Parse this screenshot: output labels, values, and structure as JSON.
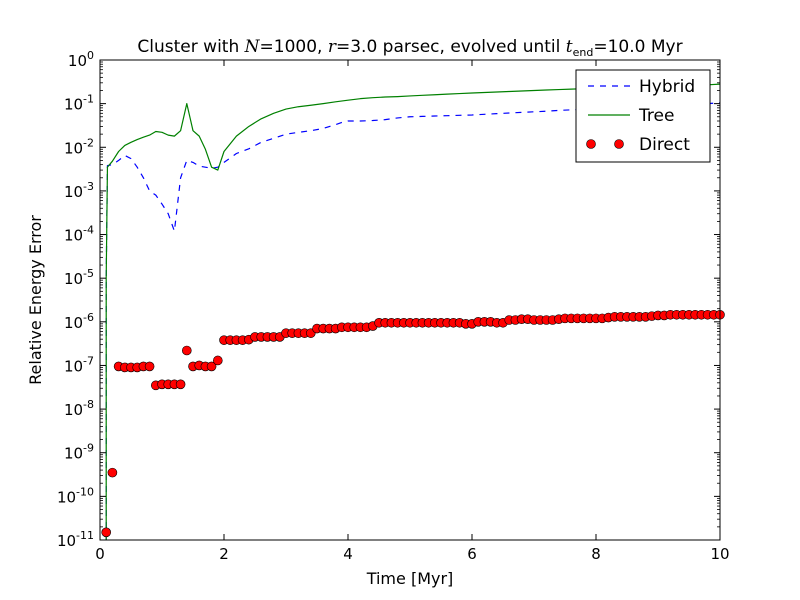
{
  "chart_data": {
    "type": "line",
    "title": "Cluster with N=1000, r=3.0 parsec, evolved until t_end=10.0 Myr",
    "title_parts": {
      "prefix": "Cluster with ",
      "n_symbol": "N",
      "n_value": "=1000, ",
      "r_symbol": "r",
      "r_value": "=3.0 parsec, evolved until ",
      "t_symbol": "t",
      "t_subscript": "end",
      "t_value": "=10.0 Myr"
    },
    "xlabel": "Time [Myr]",
    "ylabel": "Relative Energy Error",
    "xlim": [
      0,
      10
    ],
    "ylim": [
      1e-11,
      1
    ],
    "yscale": "log",
    "x_ticks": [
      0,
      2,
      4,
      6,
      8,
      10
    ],
    "y_ticks": [
      {
        "base": "10",
        "exp": "0",
        "value": 1
      },
      {
        "base": "10",
        "exp": "-1",
        "value": 0.1
      },
      {
        "base": "10",
        "exp": "-2",
        "value": 0.01
      },
      {
        "base": "10",
        "exp": "-3",
        "value": 0.001
      },
      {
        "base": "10",
        "exp": "-4",
        "value": 0.0001
      },
      {
        "base": "10",
        "exp": "-5",
        "value": 1e-05
      },
      {
        "base": "10",
        "exp": "-6",
        "value": 1e-06
      },
      {
        "base": "10",
        "exp": "-7",
        "value": 1e-07
      },
      {
        "base": "10",
        "exp": "-8",
        "value": 1e-08
      },
      {
        "base": "10",
        "exp": "-9",
        "value": 1e-09
      },
      {
        "base": "10",
        "exp": "-10",
        "value": 1e-10
      },
      {
        "base": "10",
        "exp": "-11",
        "value": 1e-11
      }
    ],
    "legend_position": "top-right",
    "grid": false,
    "series": [
      {
        "name": "Hybrid",
        "style": "dashed",
        "color": "#0000ff",
        "x": [
          0.1,
          0.1,
          0.12,
          0.2,
          0.3,
          0.4,
          0.5,
          0.6,
          0.7,
          0.8,
          0.9,
          1.0,
          1.1,
          1.2,
          1.3,
          1.4,
          1.5,
          1.6,
          1.7,
          1.8,
          1.9,
          2.0,
          2.2,
          2.4,
          2.6,
          2.8,
          3.0,
          3.2,
          3.4,
          3.6,
          3.8,
          3.9,
          4.0,
          4.2,
          4.4,
          4.6,
          4.8,
          5.0,
          5.2,
          5.4,
          5.6,
          5.8,
          6.0,
          6.2,
          6.4,
          6.6,
          6.8,
          7.0,
          7.2,
          7.4,
          7.6,
          7.8,
          8.0,
          8.2,
          8.4,
          8.6,
          8.8,
          9.0,
          9.2,
          9.4,
          9.6,
          9.8,
          10.0
        ],
        "y": [
          1e-11,
          1e-05,
          0.0038,
          0.004,
          0.005,
          0.0065,
          0.0055,
          0.0035,
          0.002,
          0.001,
          0.0008,
          0.0005,
          0.0003,
          0.00012,
          0.002,
          0.005,
          0.0045,
          0.0037,
          0.0035,
          0.0033,
          0.0035,
          0.0045,
          0.0072,
          0.0092,
          0.013,
          0.016,
          0.02,
          0.022,
          0.024,
          0.027,
          0.033,
          0.037,
          0.04,
          0.04,
          0.041,
          0.043,
          0.047,
          0.05,
          0.051,
          0.052,
          0.053,
          0.054,
          0.055,
          0.057,
          0.059,
          0.061,
          0.063,
          0.065,
          0.067,
          0.07,
          0.072,
          0.075,
          0.077,
          0.08,
          0.083,
          0.086,
          0.089,
          0.092,
          0.095,
          0.098,
          0.1,
          0.1,
          0.105
        ]
      },
      {
        "name": "Tree",
        "style": "solid",
        "color": "#008000",
        "x": [
          0.1,
          0.1,
          0.12,
          0.2,
          0.3,
          0.4,
          0.5,
          0.6,
          0.7,
          0.8,
          0.9,
          1.0,
          1.1,
          1.2,
          1.3,
          1.4,
          1.5,
          1.6,
          1.7,
          1.8,
          1.9,
          2.0,
          2.2,
          2.4,
          2.6,
          2.8,
          3.0,
          3.2,
          3.4,
          3.6,
          3.8,
          4.0,
          4.2,
          4.4,
          4.6,
          4.8,
          5.0,
          5.2,
          5.4,
          5.6,
          5.8,
          6.0,
          6.2,
          6.4,
          6.6,
          6.8,
          7.0,
          7.2,
          7.4,
          7.6,
          7.8,
          8.0,
          8.2,
          8.4,
          8.6,
          8.8,
          9.0,
          9.2,
          9.4,
          9.6,
          9.8,
          10.0
        ],
        "y": [
          1e-11,
          1e-05,
          0.0035,
          0.0048,
          0.008,
          0.011,
          0.013,
          0.015,
          0.017,
          0.019,
          0.023,
          0.022,
          0.019,
          0.018,
          0.024,
          0.1,
          0.024,
          0.018,
          0.009,
          0.0035,
          0.003,
          0.008,
          0.018,
          0.03,
          0.045,
          0.06,
          0.075,
          0.085,
          0.092,
          0.1,
          0.11,
          0.12,
          0.13,
          0.137,
          0.142,
          0.145,
          0.15,
          0.155,
          0.16,
          0.165,
          0.17,
          0.175,
          0.18,
          0.185,
          0.19,
          0.195,
          0.2,
          0.205,
          0.21,
          0.215,
          0.22,
          0.225,
          0.23,
          0.235,
          0.24,
          0.245,
          0.25,
          0.255,
          0.26,
          0.265,
          0.27,
          0.28
        ]
      },
      {
        "name": "Direct",
        "style": "markers",
        "color": "#ff0000",
        "x": [
          0.1,
          0.2,
          0.3,
          0.4,
          0.5,
          0.6,
          0.7,
          0.8,
          0.9,
          1.0,
          1.1,
          1.2,
          1.3,
          1.4,
          1.5,
          1.6,
          1.7,
          1.8,
          1.9,
          2.0,
          2.1,
          2.2,
          2.3,
          2.4,
          2.5,
          2.6,
          2.7,
          2.8,
          2.9,
          3.0,
          3.1,
          3.2,
          3.3,
          3.4,
          3.5,
          3.6,
          3.7,
          3.8,
          3.9,
          4.0,
          4.1,
          4.2,
          4.3,
          4.4,
          4.5,
          4.6,
          4.7,
          4.8,
          4.9,
          5.0,
          5.1,
          5.2,
          5.3,
          5.4,
          5.5,
          5.6,
          5.7,
          5.8,
          5.9,
          6.0,
          6.1,
          6.2,
          6.3,
          6.4,
          6.5,
          6.6,
          6.7,
          6.8,
          6.9,
          7.0,
          7.1,
          7.2,
          7.3,
          7.4,
          7.5,
          7.6,
          7.7,
          7.8,
          7.9,
          8.0,
          8.1,
          8.2,
          8.3,
          8.4,
          8.5,
          8.6,
          8.7,
          8.8,
          8.9,
          9.0,
          9.1,
          9.2,
          9.3,
          9.4,
          9.5,
          9.6,
          9.7,
          9.8,
          9.9,
          10.0
        ],
        "y": [
          1.5e-11,
          3.5e-10,
          9.5e-08,
          9e-08,
          9e-08,
          9e-08,
          9.5e-08,
          9.5e-08,
          3.5e-08,
          3.7e-08,
          3.7e-08,
          3.7e-08,
          3.7e-08,
          2.2e-07,
          9.5e-08,
          1e-07,
          9.5e-08,
          9.5e-08,
          1.3e-07,
          3.8e-07,
          3.8e-07,
          3.8e-07,
          3.8e-07,
          3.9e-07,
          4.5e-07,
          4.5e-07,
          4.5e-07,
          4.5e-07,
          4.5e-07,
          5.5e-07,
          5.5e-07,
          5.5e-07,
          5.5e-07,
          5.5e-07,
          7e-07,
          7e-07,
          7e-07,
          7e-07,
          7.5e-07,
          7.5e-07,
          7.5e-07,
          7.5e-07,
          7.5e-07,
          8e-07,
          9.5e-07,
          9.5e-07,
          9.5e-07,
          9.5e-07,
          9.5e-07,
          9.5e-07,
          9.5e-07,
          9.5e-07,
          9.5e-07,
          9.5e-07,
          9.5e-07,
          9.5e-07,
          9.5e-07,
          9.5e-07,
          9e-07,
          9e-07,
          1e-06,
          1e-06,
          1e-06,
          9.5e-07,
          9.5e-07,
          1.1e-06,
          1.1e-06,
          1.15e-06,
          1.15e-06,
          1.1e-06,
          1.1e-06,
          1.1e-06,
          1.1e-06,
          1.15e-06,
          1.2e-06,
          1.2e-06,
          1.2e-06,
          1.2e-06,
          1.2e-06,
          1.2e-06,
          1.2e-06,
          1.25e-06,
          1.3e-06,
          1.3e-06,
          1.3e-06,
          1.3e-06,
          1.3e-06,
          1.3e-06,
          1.35e-06,
          1.4e-06,
          1.4e-06,
          1.45e-06,
          1.45e-06,
          1.45e-06,
          1.45e-06,
          1.45e-06,
          1.45e-06,
          1.45e-06,
          1.45e-06,
          1.45e-06
        ]
      }
    ]
  }
}
